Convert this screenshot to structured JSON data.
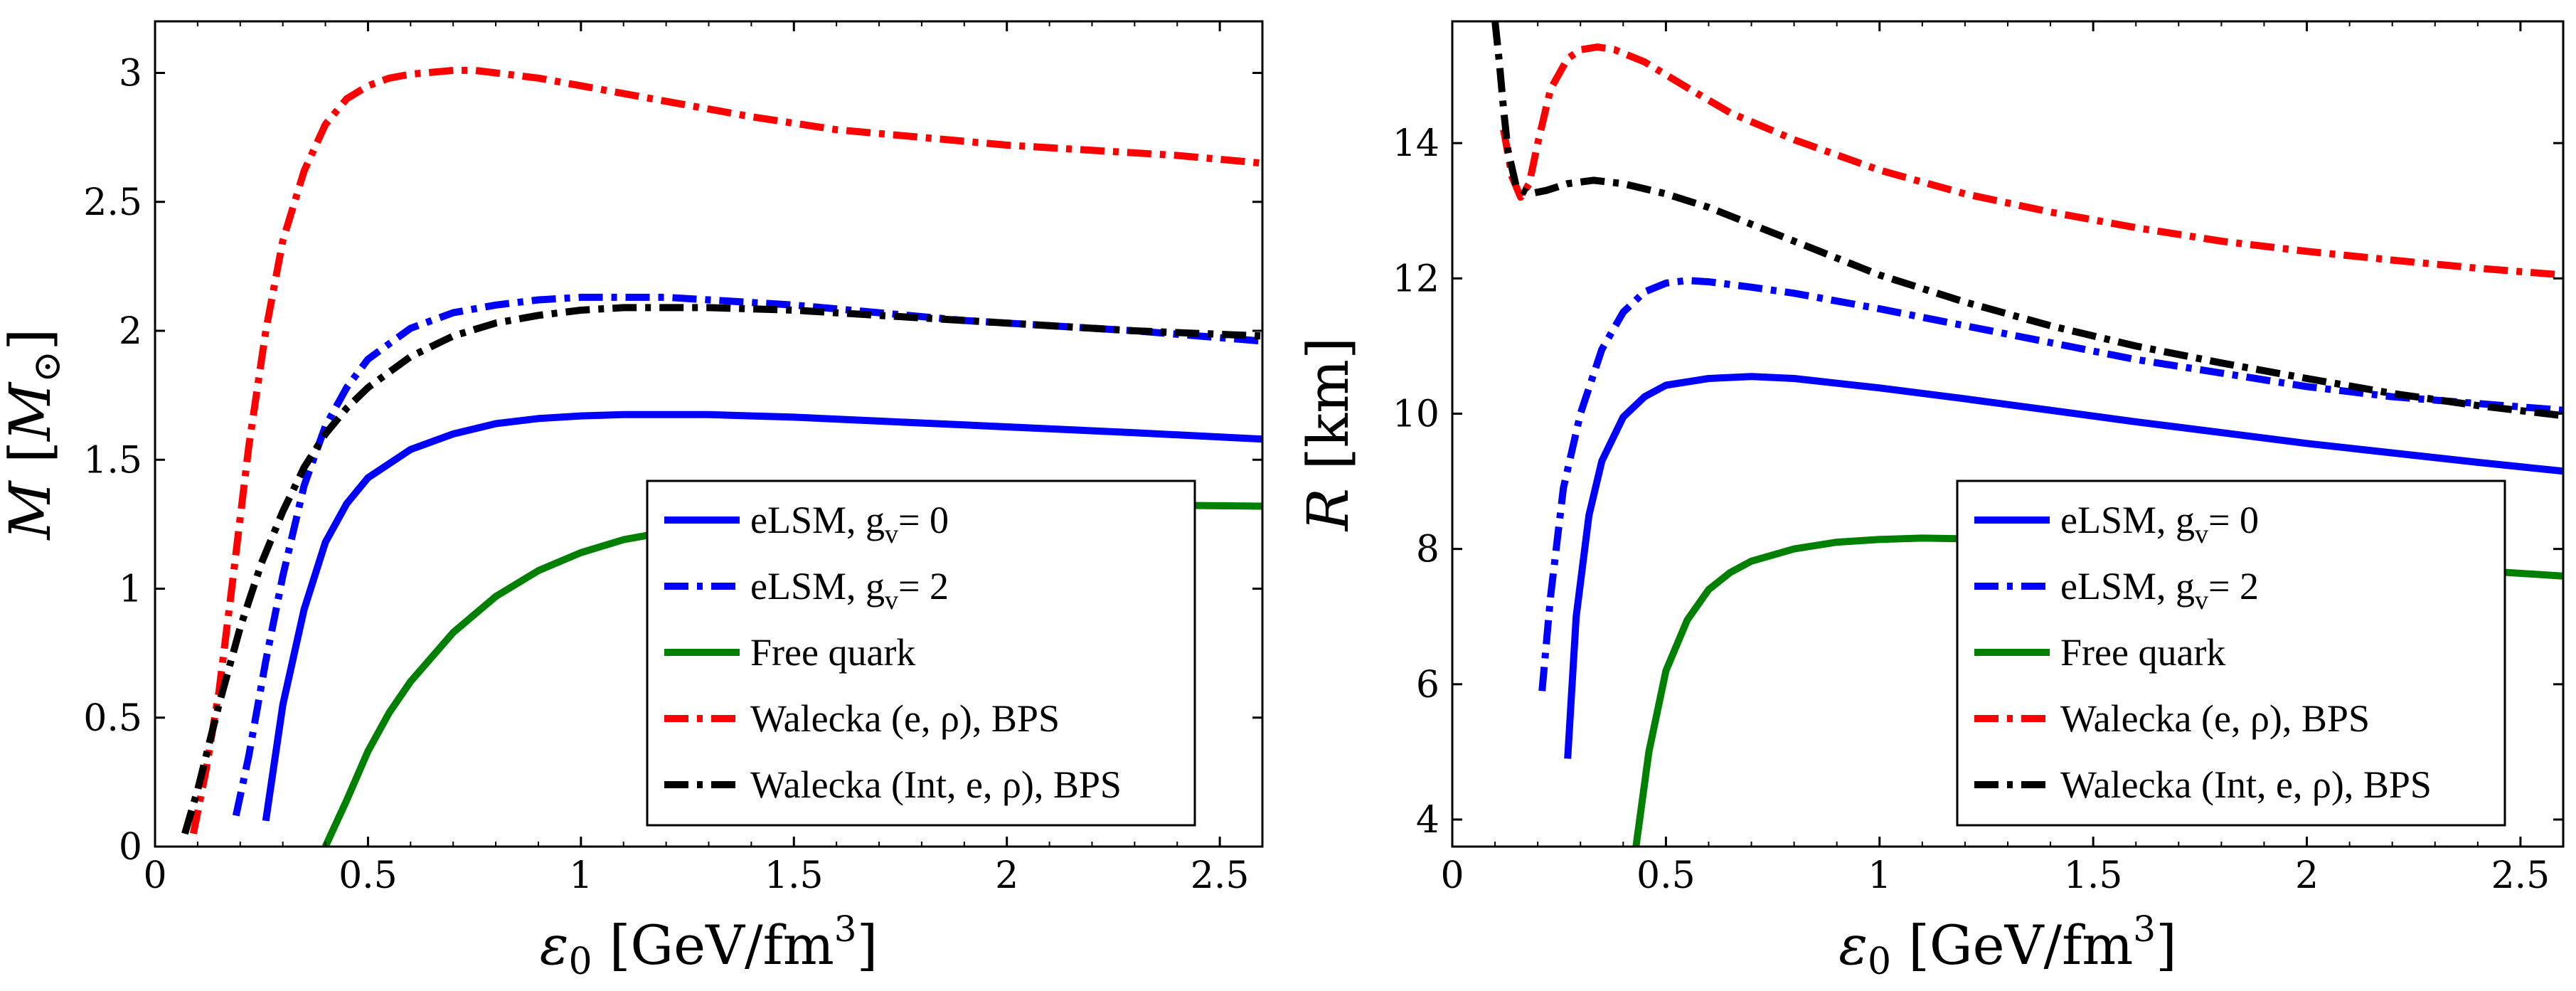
{
  "chart_data": [
    {
      "type": "line",
      "xlabel_symbol": "ε",
      "xlabel_sub": "0",
      "xlabel_unit": "[GeV/fm",
      "xlabel_sup": "3",
      "xlabel_close": "]",
      "ylabel_symbol": "M",
      "ylabel_unit_open": "[",
      "ylabel_unit": "M",
      "ylabel_unit_sub": "⊙",
      "ylabel_unit_close": "]",
      "xlim": [
        0,
        2.6
      ],
      "ylim": [
        0,
        3.2
      ],
      "xticks": [
        0,
        0.5,
        1,
        1.5,
        2,
        2.5
      ],
      "xtick_labels": [
        "0",
        "0.5",
        "1",
        "1.5",
        "2",
        "2.5"
      ],
      "yticks": [
        0,
        0.5,
        1,
        1.5,
        2,
        2.5,
        3
      ],
      "ytick_labels": [
        "0",
        "0.5",
        "1",
        "1.5",
        "2",
        "2.5",
        "3"
      ],
      "legend_position": "lower-right",
      "series": [
        {
          "name": "eLSM, g",
          "name_sub": "v",
          "name_suffix": "= 0",
          "color": "#0000ff",
          "style": "solid",
          "x": [
            0.26,
            0.3,
            0.35,
            0.4,
            0.45,
            0.5,
            0.6,
            0.7,
            0.8,
            0.9,
            1.0,
            1.1,
            1.2,
            1.3,
            1.4,
            1.5,
            1.7,
            1.9,
            2.1,
            2.3,
            2.6
          ],
          "y": [
            0.1,
            0.55,
            0.92,
            1.18,
            1.33,
            1.43,
            1.54,
            1.6,
            1.64,
            1.66,
            1.67,
            1.675,
            1.675,
            1.675,
            1.67,
            1.665,
            1.65,
            1.635,
            1.62,
            1.605,
            1.58
          ]
        },
        {
          "name": "eLSM, g",
          "name_sub": "v",
          "name_suffix": "= 2",
          "color": "#0000ff",
          "style": "dashdot",
          "x": [
            0.19,
            0.22,
            0.26,
            0.3,
            0.35,
            0.4,
            0.45,
            0.5,
            0.6,
            0.7,
            0.8,
            0.9,
            1.0,
            1.1,
            1.2,
            1.3,
            1.5,
            1.7,
            1.9,
            2.1,
            2.3,
            2.6
          ],
          "y": [
            0.12,
            0.35,
            0.72,
            1.05,
            1.4,
            1.63,
            1.78,
            1.89,
            2.01,
            2.07,
            2.1,
            2.12,
            2.13,
            2.13,
            2.13,
            2.12,
            2.1,
            2.07,
            2.04,
            2.02,
            2.0,
            1.96
          ]
        },
        {
          "name": "Free quark",
          "color": "#008000",
          "style": "solid",
          "x": [
            0.4,
            0.45,
            0.5,
            0.55,
            0.6,
            0.7,
            0.8,
            0.9,
            1.0,
            1.1,
            1.2,
            1.3,
            1.5,
            1.7,
            1.9,
            2.1,
            2.3,
            2.6
          ],
          "y": [
            0.0,
            0.18,
            0.37,
            0.52,
            0.64,
            0.83,
            0.97,
            1.07,
            1.14,
            1.19,
            1.22,
            1.245,
            1.28,
            1.3,
            1.315,
            1.32,
            1.325,
            1.32
          ]
        },
        {
          "name": "Walecka (e, ρ), BPS",
          "color": "#ff0000",
          "style": "dashdot",
          "x": [
            0.09,
            0.12,
            0.15,
            0.18,
            0.22,
            0.26,
            0.3,
            0.35,
            0.4,
            0.45,
            0.5,
            0.55,
            0.6,
            0.7,
            0.75,
            0.8,
            0.9,
            1.0,
            1.1,
            1.2,
            1.4,
            1.6,
            1.8,
            2.0,
            2.2,
            2.4,
            2.6
          ],
          "y": [
            0.05,
            0.3,
            0.6,
            1.0,
            1.55,
            2.0,
            2.35,
            2.62,
            2.8,
            2.9,
            2.95,
            2.98,
            2.995,
            3.01,
            3.01,
            3.0,
            2.98,
            2.95,
            2.92,
            2.89,
            2.83,
            2.78,
            2.75,
            2.72,
            2.7,
            2.68,
            2.65
          ]
        },
        {
          "name": "Walecka (Int, e, ρ), BPS",
          "color": "#000000",
          "style": "dashdot",
          "x": [
            0.07,
            0.1,
            0.15,
            0.2,
            0.25,
            0.3,
            0.35,
            0.4,
            0.45,
            0.5,
            0.6,
            0.7,
            0.8,
            0.9,
            1.0,
            1.1,
            1.2,
            1.3,
            1.5,
            1.7,
            1.9,
            2.1,
            2.3,
            2.6
          ],
          "y": [
            0.05,
            0.22,
            0.55,
            0.85,
            1.1,
            1.3,
            1.47,
            1.6,
            1.7,
            1.78,
            1.9,
            1.98,
            2.03,
            2.06,
            2.08,
            2.09,
            2.09,
            2.09,
            2.08,
            2.06,
            2.04,
            2.02,
            2.0,
            1.98
          ]
        }
      ],
      "legend": [
        {
          "label": "eLSM, g",
          "sub": "v",
          "suffix": "= 0",
          "color": "#0000ff",
          "style": "solid"
        },
        {
          "label": "eLSM, g",
          "sub": "v",
          "suffix": "= 2",
          "color": "#0000ff",
          "style": "dashdot"
        },
        {
          "label": "Free quark",
          "color": "#008000",
          "style": "solid"
        },
        {
          "label": "Walecka (e, ρ), BPS",
          "color": "#ff0000",
          "style": "dashdot"
        },
        {
          "label": "Walecka (Int, e, ρ), BPS",
          "color": "#000000",
          "style": "dashdot"
        }
      ]
    },
    {
      "type": "line",
      "xlabel_symbol": "ε",
      "xlabel_sub": "0",
      "xlabel_unit": "[GeV/fm",
      "xlabel_sup": "3",
      "xlabel_close": "]",
      "ylabel_symbol": "R",
      "ylabel_unit": "[km]",
      "xlim": [
        0,
        2.6
      ],
      "ylim": [
        3.6,
        15.8
      ],
      "xticks": [
        0,
        0.5,
        1,
        1.5,
        2,
        2.5
      ],
      "xtick_labels": [
        "0",
        "0.5",
        "1",
        "1.5",
        "2",
        "2.5"
      ],
      "yticks": [
        4,
        6,
        8,
        10,
        12,
        14
      ],
      "ytick_labels": [
        "4",
        "6",
        "8",
        "10",
        "12",
        "14"
      ],
      "legend_position": "lower-right",
      "series": [
        {
          "name": "eLSM, g",
          "name_sub": "v",
          "name_suffix": "= 0",
          "color": "#0000ff",
          "style": "solid",
          "x": [
            0.27,
            0.29,
            0.32,
            0.35,
            0.4,
            0.45,
            0.5,
            0.6,
            0.7,
            0.8,
            0.9,
            1.0,
            1.2,
            1.4,
            1.6,
            1.8,
            2.0,
            2.2,
            2.4,
            2.6
          ],
          "y": [
            4.9,
            7.0,
            8.5,
            9.3,
            9.95,
            10.25,
            10.42,
            10.52,
            10.55,
            10.52,
            10.45,
            10.38,
            10.22,
            10.05,
            9.88,
            9.72,
            9.56,
            9.42,
            9.28,
            9.15
          ]
        },
        {
          "name": "eLSM, g",
          "name_sub": "v",
          "name_suffix": "= 2",
          "color": "#0000ff",
          "style": "dashdot",
          "x": [
            0.21,
            0.23,
            0.26,
            0.3,
            0.35,
            0.4,
            0.45,
            0.5,
            0.55,
            0.6,
            0.7,
            0.8,
            1.0,
            1.2,
            1.4,
            1.6,
            1.8,
            2.0,
            2.2,
            2.4,
            2.6
          ],
          "y": [
            5.9,
            7.3,
            8.9,
            10.0,
            10.95,
            11.5,
            11.8,
            11.93,
            11.97,
            11.95,
            11.87,
            11.78,
            11.55,
            11.3,
            11.05,
            10.8,
            10.6,
            10.4,
            10.25,
            10.15,
            10.05
          ]
        },
        {
          "name": "Free quark",
          "color": "#008000",
          "style": "solid",
          "x": [
            0.43,
            0.46,
            0.5,
            0.55,
            0.6,
            0.65,
            0.7,
            0.8,
            0.9,
            1.0,
            1.1,
            1.2,
            1.4,
            1.6,
            1.8,
            2.0,
            2.2,
            2.4,
            2.6
          ],
          "y": [
            3.6,
            5.0,
            6.2,
            6.95,
            7.4,
            7.65,
            7.82,
            8.0,
            8.1,
            8.14,
            8.16,
            8.15,
            8.1,
            8.02,
            7.94,
            7.85,
            7.76,
            7.68,
            7.6
          ]
        },
        {
          "name": "Walecka (e, ρ), BPS",
          "color": "#ff0000",
          "style": "dashdot",
          "x": [
            0.12,
            0.14,
            0.16,
            0.18,
            0.2,
            0.23,
            0.27,
            0.3,
            0.34,
            0.38,
            0.45,
            0.55,
            0.65,
            0.8,
            1.0,
            1.2,
            1.4,
            1.6,
            1.8,
            2.0,
            2.2,
            2.4,
            2.6
          ],
          "y": [
            14.2,
            13.5,
            13.2,
            13.4,
            14.0,
            14.8,
            15.25,
            15.38,
            15.42,
            15.38,
            15.2,
            14.82,
            14.45,
            14.05,
            13.6,
            13.25,
            12.98,
            12.75,
            12.55,
            12.4,
            12.27,
            12.15,
            12.05
          ]
        },
        {
          "name": "Walecka (Int, e, ρ), BPS",
          "color": "#000000",
          "style": "dashdot",
          "x": [
            0.1,
            0.11,
            0.12,
            0.13,
            0.15,
            0.18,
            0.22,
            0.27,
            0.33,
            0.4,
            0.5,
            0.6,
            0.8,
            1.0,
            1.2,
            1.4,
            1.6,
            1.8,
            2.0,
            2.2,
            2.4,
            2.6
          ],
          "y": [
            15.8,
            15.2,
            14.5,
            13.9,
            13.35,
            13.25,
            13.3,
            13.4,
            13.45,
            13.4,
            13.25,
            13.05,
            12.55,
            12.05,
            11.65,
            11.3,
            11.0,
            10.75,
            10.52,
            10.3,
            10.12,
            9.97
          ]
        }
      ],
      "legend": [
        {
          "label": "eLSM, g",
          "sub": "v",
          "suffix": "= 0",
          "color": "#0000ff",
          "style": "solid"
        },
        {
          "label": "eLSM, g",
          "sub": "v",
          "suffix": "= 2",
          "color": "#0000ff",
          "style": "dashdot"
        },
        {
          "label": "Free quark",
          "color": "#008000",
          "style": "solid"
        },
        {
          "label": "Walecka (e, ρ), BPS",
          "color": "#ff0000",
          "style": "dashdot"
        },
        {
          "label": "Walecka (Int, e, ρ), BPS",
          "color": "#000000",
          "style": "dashdot"
        }
      ]
    }
  ]
}
